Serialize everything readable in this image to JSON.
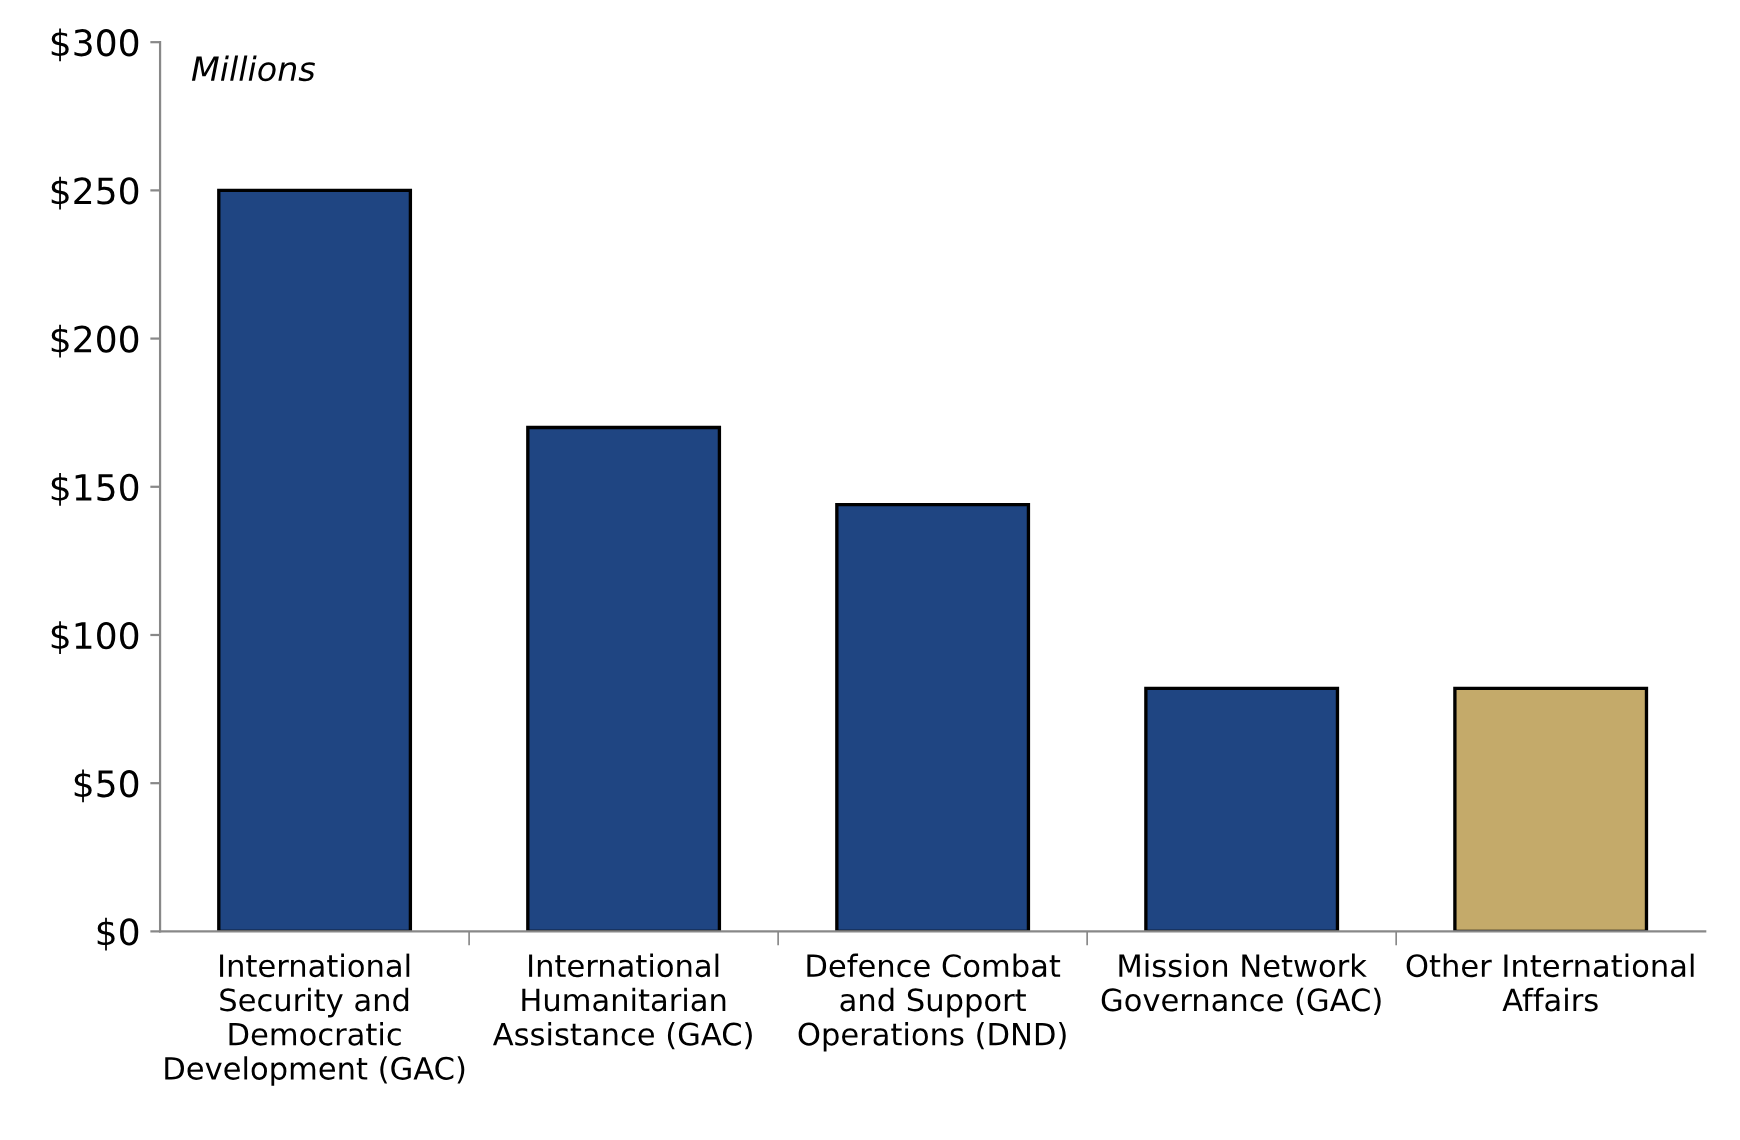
{
  "chart_data": {
    "type": "bar",
    "categories": [
      "International\nSecurity and\nDemocratic\nDevelopment (GAC)",
      "International\nHumanitarian\nAssistance (GAC)",
      "Defence Combat\nand Support\nOperations (DND)",
      "Mission Network\nGovernance (GAC)",
      "Other International\nAffairs"
    ],
    "values": [
      250,
      170,
      144,
      82,
      82
    ],
    "colors": [
      "#1f4582",
      "#1f4582",
      "#1f4582",
      "#1f4582",
      "#c4aa6a"
    ],
    "ylim": [
      0,
      300
    ],
    "yticks": [
      {
        "value": 0,
        "label": "$0"
      },
      {
        "value": 50,
        "label": "$50"
      },
      {
        "value": 100,
        "label": "$100"
      },
      {
        "value": 150,
        "label": "$150"
      },
      {
        "value": 200,
        "label": "$200"
      },
      {
        "value": 250,
        "label": "$250"
      },
      {
        "value": 300,
        "label": "$300"
      }
    ],
    "annotations": [
      "Millions"
    ],
    "grid": false,
    "legend": false
  }
}
